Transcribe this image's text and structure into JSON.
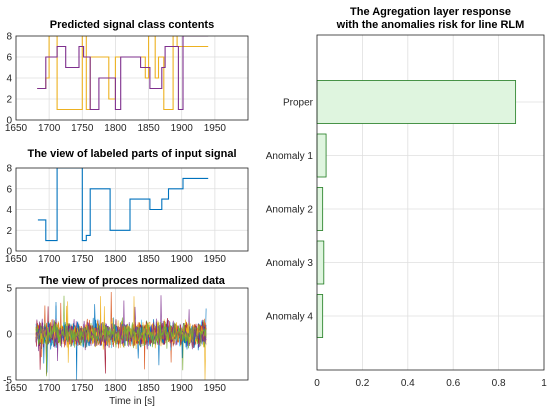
{
  "colors": {
    "c1": "#0072bd",
    "c2": "#d95319",
    "c3": "#edb120",
    "c4": "#7e2f8e",
    "c5": "#77ac30",
    "c6": "#4dbeee",
    "c7": "#a2142f",
    "bar_fill": "#dff5df",
    "bar_edge": "#1e7a1e"
  },
  "chart_data": [
    {
      "type": "line",
      "title": "Predicted signal class contents",
      "xlim": [
        1650,
        2000
      ],
      "ylim": [
        0,
        8
      ],
      "xticks": [
        1650,
        1700,
        1750,
        1800,
        1850,
        1900,
        1950
      ],
      "yticks": [
        0,
        2,
        4,
        6,
        8
      ],
      "grid": true,
      "series": [
        {
          "color": "#edb120",
          "x": [
            1682,
            1695,
            1695,
            1700,
            1700,
            1712,
            1712,
            1750,
            1750,
            1756,
            1756,
            1762,
            1762,
            1790,
            1790,
            1800,
            1800,
            1845,
            1845,
            1850,
            1850,
            1860,
            1860,
            1865,
            1865,
            1873,
            1873,
            1887,
            1887,
            1893,
            1893,
            1940
          ],
          "y": [
            3,
            3,
            4,
            4,
            8,
            8,
            1,
            1,
            8,
            8,
            1,
            1,
            6,
            6,
            2,
            2,
            6,
            6,
            4,
            4,
            8,
            8,
            4,
            4,
            6,
            6,
            1,
            1,
            8,
            8,
            7,
            7
          ]
        },
        {
          "color": "#7e2f8e",
          "x": [
            1682,
            1695,
            1695,
            1712,
            1712,
            1725,
            1725,
            1745,
            1745,
            1752,
            1752,
            1762,
            1762,
            1775,
            1775,
            1800,
            1800,
            1808,
            1808,
            1838,
            1838,
            1852,
            1852,
            1870,
            1870,
            1875,
            1875,
            1895,
            1895,
            1902,
            1902,
            1940
          ],
          "y": [
            3,
            3,
            6,
            6,
            7,
            7,
            5,
            5,
            7,
            7,
            6,
            6,
            1,
            1,
            4,
            4,
            1,
            1,
            6,
            6,
            5,
            5,
            3,
            3,
            5,
            5,
            7,
            7,
            1,
            1,
            8,
            8
          ]
        }
      ]
    },
    {
      "type": "line",
      "title": "The view of labeled parts of input signal",
      "xlim": [
        1650,
        2000
      ],
      "ylim": [
        0,
        8
      ],
      "xticks": [
        1650,
        1700,
        1750,
        1800,
        1850,
        1900,
        1950
      ],
      "yticks": [
        0,
        2,
        4,
        6,
        8
      ],
      "grid": true,
      "series": [
        {
          "color": "#0072bd",
          "x": [
            1683,
            1695,
            1695,
            1700,
            1700,
            1712,
            1712,
            1750,
            1750,
            1756,
            1756,
            1762,
            1762,
            1792,
            1792,
            1800,
            1800,
            1822,
            1822,
            1852,
            1852,
            1870,
            1870,
            1880,
            1880,
            1902,
            1902,
            1940
          ],
          "y": [
            3,
            3,
            1,
            1,
            1,
            1,
            8,
            8,
            1,
            1,
            1.5,
            1.5,
            6,
            6,
            2,
            2,
            2,
            2,
            5,
            5,
            4,
            4,
            5,
            5,
            6,
            6,
            7,
            7
          ]
        }
      ]
    },
    {
      "type": "line",
      "title": "The view of proces normalized data",
      "xlabel": "Time in [s]",
      "xlim": [
        1650,
        2000
      ],
      "ylim": [
        -5,
        5
      ],
      "xticks": [
        1650,
        1700,
        1750,
        1800,
        1850,
        1900,
        1950
      ],
      "yticks": [
        -5,
        0,
        5
      ],
      "grid": true,
      "noise": {
        "x_start": 1680,
        "x_end": 1937,
        "num_series": 12,
        "typical_amplitude": 1.3,
        "spike_max": 5
      }
    },
    {
      "type": "bar",
      "orientation": "horizontal",
      "title": "The Agregation layer response",
      "subtitle": "with the anomalies risk for line RLM",
      "categories": [
        "Proper",
        "Anomaly 1",
        "Anomaly 2",
        "Anomaly 3",
        "Anomaly 4"
      ],
      "values": [
        0.875,
        0.04,
        0.025,
        0.03,
        0.025
      ],
      "xlim": [
        0,
        1
      ],
      "xticks": [
        0,
        0.2,
        0.4,
        0.6,
        0.8,
        1
      ],
      "grid": true
    }
  ]
}
